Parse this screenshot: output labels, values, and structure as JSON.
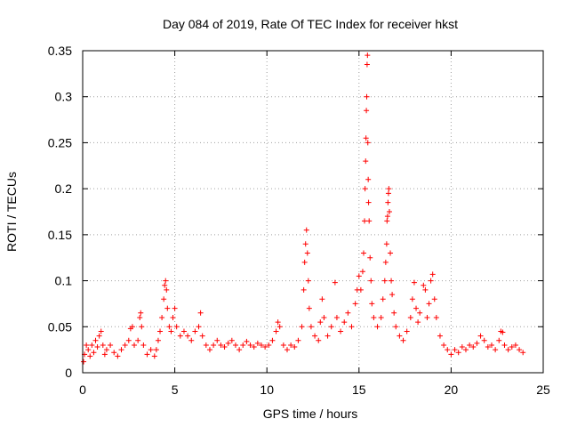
{
  "chart_data": {
    "type": "scatter",
    "title": "Day 084 of 2019, Rate Of TEC Index for receiver hkst",
    "xlabel": "GPS time / hours",
    "ylabel": "ROTI / TECUs",
    "xlim": [
      0,
      25
    ],
    "ylim": [
      0,
      0.35
    ],
    "xticks": [
      0,
      5,
      10,
      15,
      20,
      25
    ],
    "xtick_labels": [
      "0",
      "5",
      "10",
      "15",
      "20",
      "25"
    ],
    "yticks": [
      0,
      0.05,
      0.1,
      0.15,
      0.2,
      0.25,
      0.3,
      0.35
    ],
    "ytick_labels": [
      "0",
      "0.05",
      "0.1",
      "0.15",
      "0.2",
      "0.25",
      "0.3",
      "0.35"
    ],
    "grid": true,
    "marker": "+",
    "color": "#ff0000",
    "series": [
      {
        "name": "ROTI",
        "points": [
          [
            0.05,
            0.012
          ],
          [
            0.1,
            0.02
          ],
          [
            0.2,
            0.03
          ],
          [
            0.3,
            0.025
          ],
          [
            0.4,
            0.018
          ],
          [
            0.5,
            0.03
          ],
          [
            0.6,
            0.022
          ],
          [
            0.7,
            0.035
          ],
          [
            0.8,
            0.028
          ],
          [
            0.9,
            0.04
          ],
          [
            1.0,
            0.045
          ],
          [
            1.1,
            0.03
          ],
          [
            1.2,
            0.02
          ],
          [
            1.3,
            0.025
          ],
          [
            1.5,
            0.03
          ],
          [
            1.7,
            0.022
          ],
          [
            1.9,
            0.018
          ],
          [
            2.1,
            0.025
          ],
          [
            2.3,
            0.03
          ],
          [
            2.5,
            0.035
          ],
          [
            2.6,
            0.048
          ],
          [
            2.7,
            0.05
          ],
          [
            2.8,
            0.03
          ],
          [
            3.0,
            0.035
          ],
          [
            3.1,
            0.06
          ],
          [
            3.15,
            0.065
          ],
          [
            3.2,
            0.05
          ],
          [
            3.3,
            0.03
          ],
          [
            3.5,
            0.02
          ],
          [
            3.7,
            0.025
          ],
          [
            3.9,
            0.018
          ],
          [
            4.0,
            0.025
          ],
          [
            4.1,
            0.035
          ],
          [
            4.2,
            0.045
          ],
          [
            4.3,
            0.06
          ],
          [
            4.4,
            0.08
          ],
          [
            4.45,
            0.095
          ],
          [
            4.5,
            0.1
          ],
          [
            4.55,
            0.09
          ],
          [
            4.6,
            0.07
          ],
          [
            4.7,
            0.05
          ],
          [
            4.8,
            0.045
          ],
          [
            4.9,
            0.06
          ],
          [
            5.0,
            0.07
          ],
          [
            5.1,
            0.05
          ],
          [
            5.3,
            0.04
          ],
          [
            5.5,
            0.045
          ],
          [
            5.7,
            0.04
          ],
          [
            5.9,
            0.035
          ],
          [
            6.1,
            0.045
          ],
          [
            6.3,
            0.05
          ],
          [
            6.4,
            0.065
          ],
          [
            6.5,
            0.04
          ],
          [
            6.7,
            0.03
          ],
          [
            6.9,
            0.025
          ],
          [
            7.1,
            0.03
          ],
          [
            7.3,
            0.035
          ],
          [
            7.5,
            0.03
          ],
          [
            7.7,
            0.028
          ],
          [
            7.9,
            0.032
          ],
          [
            8.1,
            0.035
          ],
          [
            8.3,
            0.03
          ],
          [
            8.5,
            0.025
          ],
          [
            8.7,
            0.03
          ],
          [
            8.9,
            0.034
          ],
          [
            9.1,
            0.03
          ],
          [
            9.3,
            0.028
          ],
          [
            9.5,
            0.032
          ],
          [
            9.7,
            0.03
          ],
          [
            9.9,
            0.028
          ],
          [
            10.1,
            0.03
          ],
          [
            10.3,
            0.035
          ],
          [
            10.5,
            0.045
          ],
          [
            10.6,
            0.055
          ],
          [
            10.7,
            0.05
          ],
          [
            10.9,
            0.03
          ],
          [
            11.1,
            0.025
          ],
          [
            11.3,
            0.03
          ],
          [
            11.5,
            0.028
          ],
          [
            11.7,
            0.035
          ],
          [
            11.9,
            0.05
          ],
          [
            12.0,
            0.09
          ],
          [
            12.05,
            0.12
          ],
          [
            12.1,
            0.14
          ],
          [
            12.15,
            0.155
          ],
          [
            12.2,
            0.13
          ],
          [
            12.25,
            0.1
          ],
          [
            12.3,
            0.07
          ],
          [
            12.4,
            0.05
          ],
          [
            12.6,
            0.04
          ],
          [
            12.8,
            0.035
          ],
          [
            12.9,
            0.055
          ],
          [
            13.0,
            0.08
          ],
          [
            13.1,
            0.06
          ],
          [
            13.3,
            0.04
          ],
          [
            13.5,
            0.05
          ],
          [
            13.7,
            0.098
          ],
          [
            13.8,
            0.06
          ],
          [
            14.0,
            0.045
          ],
          [
            14.2,
            0.055
          ],
          [
            14.4,
            0.065
          ],
          [
            14.6,
            0.05
          ],
          [
            14.8,
            0.075
          ],
          [
            14.9,
            0.09
          ],
          [
            15.0,
            0.105
          ],
          [
            15.1,
            0.09
          ],
          [
            15.2,
            0.11
          ],
          [
            15.25,
            0.13
          ],
          [
            15.3,
            0.165
          ],
          [
            15.33,
            0.2
          ],
          [
            15.36,
            0.23
          ],
          [
            15.38,
            0.255
          ],
          [
            15.4,
            0.285
          ],
          [
            15.42,
            0.3
          ],
          [
            15.44,
            0.335
          ],
          [
            15.46,
            0.345
          ],
          [
            15.48,
            0.25
          ],
          [
            15.5,
            0.21
          ],
          [
            15.52,
            0.185
          ],
          [
            15.55,
            0.165
          ],
          [
            15.6,
            0.125
          ],
          [
            15.65,
            0.1
          ],
          [
            15.7,
            0.075
          ],
          [
            15.8,
            0.06
          ],
          [
            16.0,
            0.05
          ],
          [
            16.2,
            0.06
          ],
          [
            16.3,
            0.08
          ],
          [
            16.4,
            0.1
          ],
          [
            16.45,
            0.12
          ],
          [
            16.5,
            0.14
          ],
          [
            16.52,
            0.165
          ],
          [
            16.55,
            0.17
          ],
          [
            16.57,
            0.185
          ],
          [
            16.6,
            0.195
          ],
          [
            16.62,
            0.2
          ],
          [
            16.65,
            0.175
          ],
          [
            16.7,
            0.13
          ],
          [
            16.75,
            0.1
          ],
          [
            16.8,
            0.085
          ],
          [
            16.9,
            0.065
          ],
          [
            17.0,
            0.05
          ],
          [
            17.2,
            0.04
          ],
          [
            17.4,
            0.035
          ],
          [
            17.6,
            0.045
          ],
          [
            17.8,
            0.06
          ],
          [
            17.9,
            0.08
          ],
          [
            18.0,
            0.098
          ],
          [
            18.1,
            0.07
          ],
          [
            18.2,
            0.055
          ],
          [
            18.3,
            0.065
          ],
          [
            18.5,
            0.095
          ],
          [
            18.6,
            0.09
          ],
          [
            18.7,
            0.06
          ],
          [
            18.8,
            0.075
          ],
          [
            18.9,
            0.1
          ],
          [
            19.0,
            0.107
          ],
          [
            19.1,
            0.08
          ],
          [
            19.2,
            0.06
          ],
          [
            19.4,
            0.04
          ],
          [
            19.6,
            0.03
          ],
          [
            19.8,
            0.025
          ],
          [
            20.0,
            0.02
          ],
          [
            20.2,
            0.025
          ],
          [
            20.4,
            0.022
          ],
          [
            20.6,
            0.028
          ],
          [
            20.8,
            0.025
          ],
          [
            21.0,
            0.03
          ],
          [
            21.2,
            0.028
          ],
          [
            21.4,
            0.032
          ],
          [
            21.6,
            0.04
          ],
          [
            21.8,
            0.035
          ],
          [
            22.0,
            0.028
          ],
          [
            22.2,
            0.03
          ],
          [
            22.4,
            0.025
          ],
          [
            22.6,
            0.035
          ],
          [
            22.7,
            0.045
          ],
          [
            22.8,
            0.044
          ],
          [
            22.9,
            0.03
          ],
          [
            23.1,
            0.025
          ],
          [
            23.3,
            0.028
          ],
          [
            23.5,
            0.03
          ],
          [
            23.7,
            0.025
          ],
          [
            23.9,
            0.022
          ]
        ]
      }
    ]
  }
}
